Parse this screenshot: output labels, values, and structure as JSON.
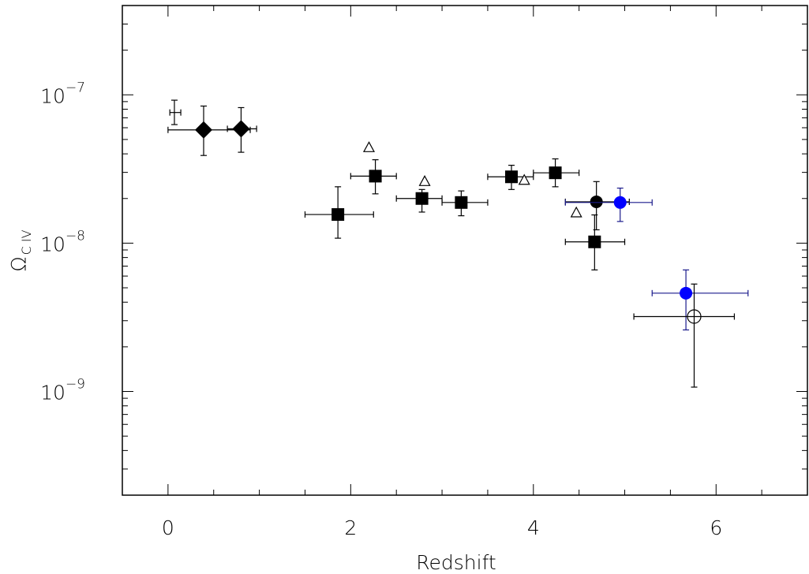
{
  "chart_data": {
    "type": "scatter",
    "title": "",
    "xlabel": "Redshift",
    "ylabel": {
      "main": "Ω",
      "sub": "C IV"
    },
    "x_range": [
      -0.5,
      7.0
    ],
    "y_range": [
      2e-10,
      4e-07
    ],
    "y_scale": "log",
    "grid": false,
    "x_ticks": [
      {
        "value": 0,
        "label": "0"
      },
      {
        "value": 2,
        "label": "2"
      },
      {
        "value": 4,
        "label": "4"
      },
      {
        "value": 6,
        "label": "6"
      }
    ],
    "y_ticks": [
      {
        "value": 1e-07,
        "base": "10",
        "exp": "−7"
      },
      {
        "value": 1e-08,
        "base": "10",
        "exp": "−8"
      },
      {
        "value": 1e-09,
        "base": "10",
        "exp": "−9"
      }
    ],
    "series": [
      {
        "marker": "plus",
        "color": "#000000",
        "points": [
          {
            "x": 0.07,
            "y": 7.6e-08,
            "xlo": 0.02,
            "xhi": 0.14,
            "ylo": 6.3e-08,
            "yhi": 9.2e-08
          }
        ]
      },
      {
        "marker": "diamond",
        "color": "#000000",
        "points": [
          {
            "x": 0.39,
            "y": 5.8e-08,
            "xlo": 0.0,
            "xhi": 0.9,
            "ylo": 3.9e-08,
            "yhi": 8.4e-08
          },
          {
            "x": 0.8,
            "y": 5.9e-08,
            "xlo": 0.65,
            "xhi": 0.97,
            "ylo": 4.1e-08,
            "yhi": 8.2e-08
          }
        ]
      },
      {
        "marker": "square",
        "color": "#000000",
        "points": [
          {
            "x": 1.86,
            "y": 1.56e-08,
            "xlo": 1.5,
            "xhi": 2.25,
            "ylo": 1.08e-08,
            "yhi": 2.4e-08
          },
          {
            "x": 2.27,
            "y": 2.83e-08,
            "xlo": 2.0,
            "xhi": 2.5,
            "ylo": 2.15e-08,
            "yhi": 3.65e-08
          },
          {
            "x": 2.78,
            "y": 2e-08,
            "xlo": 2.5,
            "xhi": 3.0,
            "ylo": 1.62e-08,
            "yhi": 2.3e-08
          },
          {
            "x": 3.21,
            "y": 1.88e-08,
            "xlo": 3.0,
            "xhi": 3.5,
            "ylo": 1.53e-08,
            "yhi": 2.25e-08
          },
          {
            "x": 3.76,
            "y": 2.8e-08,
            "xlo": 3.5,
            "xhi": 4.0,
            "ylo": 2.3e-08,
            "yhi": 3.35e-08
          },
          {
            "x": 4.24,
            "y": 2.98e-08,
            "xlo": 4.0,
            "xhi": 4.5,
            "ylo": 2.4e-08,
            "yhi": 3.7e-08
          },
          {
            "x": 4.67,
            "y": 1.02e-08,
            "xlo": 4.35,
            "xhi": 5.0,
            "ylo": 6.6e-09,
            "yhi": 1.55e-08
          }
        ]
      },
      {
        "marker": "triangle-open",
        "color": "#000000",
        "points": [
          {
            "x": 2.2,
            "y": 4.4e-08
          },
          {
            "x": 2.81,
            "y": 2.6e-08
          },
          {
            "x": 3.9,
            "y": 2.65e-08
          },
          {
            "x": 4.47,
            "y": 1.6e-08
          }
        ]
      },
      {
        "marker": "circle",
        "color": "#000000",
        "points": [
          {
            "x": 4.69,
            "y": 1.9e-08,
            "xlo": 4.35,
            "xhi": 5.05,
            "ylo": 1.23e-08,
            "yhi": 2.6e-08
          }
        ]
      },
      {
        "marker": "circle",
        "color": "#0000ff",
        "errcolor": "#1a1a8c",
        "points": [
          {
            "x": 4.95,
            "y": 1.88e-08,
            "xlo": 4.35,
            "xhi": 5.3,
            "ylo": 1.4e-08,
            "yhi": 2.35e-08
          },
          {
            "x": 5.67,
            "y": 4.6e-09,
            "xlo": 5.3,
            "xhi": 6.35,
            "ylo": 2.6e-09,
            "yhi": 6.6e-09
          }
        ]
      },
      {
        "marker": "circle-open",
        "color": "#000000",
        "points": [
          {
            "x": 5.76,
            "y": 3.2e-09,
            "xlo": 5.1,
            "xhi": 6.2,
            "ylo": 1.07e-09,
            "yhi": 5.3e-09
          }
        ]
      }
    ]
  }
}
